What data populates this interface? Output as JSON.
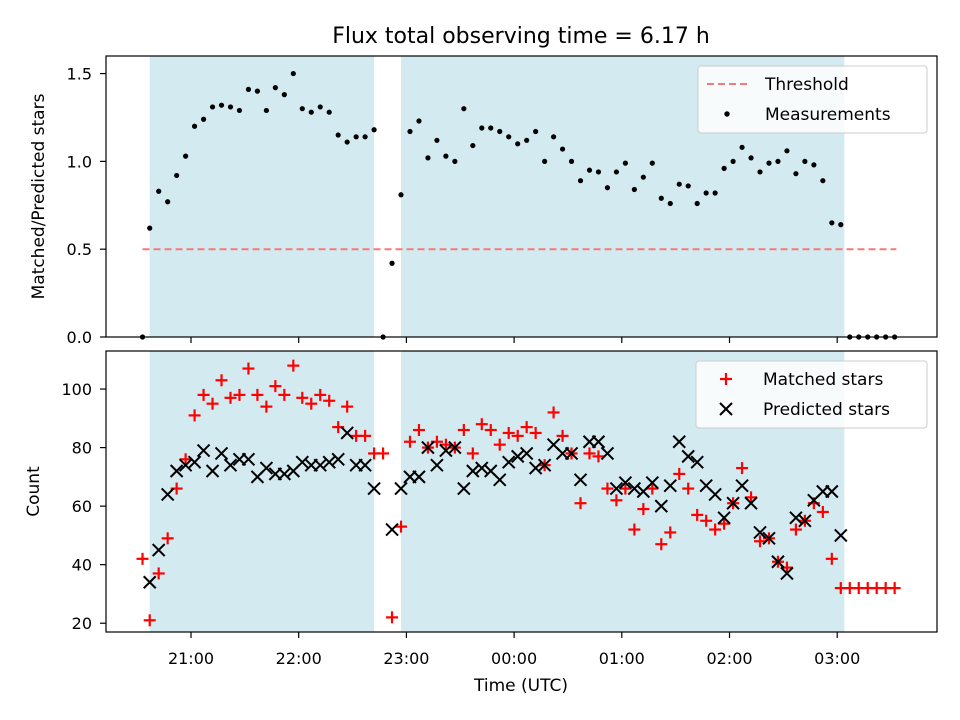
{
  "chart_data": [
    {
      "type": "scatter",
      "title": "Flux total observing time = 6.17 h",
      "xlabel": "",
      "ylabel": "Matched/Predicted stars",
      "ylim": [
        0,
        1.6
      ],
      "yticks": [
        "0.0",
        "0.5",
        "1.0",
        "1.5"
      ],
      "threshold": {
        "name": "Threshold",
        "value": 0.5,
        "x_range": [
          "20:33",
          "03:33"
        ],
        "color": "#f47a7a"
      },
      "shaded_intervals": [
        [
          "20:37",
          "22:42"
        ],
        [
          "22:57",
          "03:04"
        ]
      ],
      "shade_color": "#d4eaf1",
      "legend_position": "upper right",
      "series": [
        {
          "name": "Measurements",
          "color": "#000000",
          "marker": "dot",
          "points": [
            [
              "20:33",
              0.0
            ],
            [
              "20:37",
              0.62
            ],
            [
              "20:42",
              0.83
            ],
            [
              "20:47",
              0.77
            ],
            [
              "20:52",
              0.92
            ],
            [
              "20:57",
              1.03
            ],
            [
              "21:02",
              1.2
            ],
            [
              "21:07",
              1.24
            ],
            [
              "21:12",
              1.31
            ],
            [
              "21:17",
              1.32
            ],
            [
              "21:22",
              1.31
            ],
            [
              "21:27",
              1.29
            ],
            [
              "21:32",
              1.41
            ],
            [
              "21:37",
              1.4
            ],
            [
              "21:42",
              1.29
            ],
            [
              "21:47",
              1.42
            ],
            [
              "21:52",
              1.38
            ],
            [
              "21:57",
              1.5
            ],
            [
              "22:02",
              1.3
            ],
            [
              "22:07",
              1.28
            ],
            [
              "22:12",
              1.31
            ],
            [
              "22:17",
              1.28
            ],
            [
              "22:22",
              1.15
            ],
            [
              "22:27",
              1.11
            ],
            [
              "22:32",
              1.14
            ],
            [
              "22:37",
              1.14
            ],
            [
              "22:42",
              1.18
            ],
            [
              "22:47",
              0.0
            ],
            [
              "22:52",
              0.42
            ],
            [
              "22:57",
              0.81
            ],
            [
              "23:02",
              1.17
            ],
            [
              "23:07",
              1.23
            ],
            [
              "23:12",
              1.02
            ],
            [
              "23:17",
              1.12
            ],
            [
              "23:22",
              1.03
            ],
            [
              "23:27",
              1.0
            ],
            [
              "23:32",
              1.3
            ],
            [
              "23:37",
              1.09
            ],
            [
              "23:42",
              1.19
            ],
            [
              "23:47",
              1.19
            ],
            [
              "23:52",
              1.17
            ],
            [
              "23:57",
              1.14
            ],
            [
              "00:02",
              1.1
            ],
            [
              "00:07",
              1.12
            ],
            [
              "00:12",
              1.17
            ],
            [
              "00:17",
              1.0
            ],
            [
              "00:22",
              1.14
            ],
            [
              "00:27",
              1.07
            ],
            [
              "00:32",
              1.0
            ],
            [
              "00:37",
              0.89
            ],
            [
              "00:42",
              0.95
            ],
            [
              "00:47",
              0.94
            ],
            [
              "00:52",
              0.85
            ],
            [
              "00:57",
              0.94
            ],
            [
              "01:02",
              0.99
            ],
            [
              "01:07",
              0.84
            ],
            [
              "01:12",
              0.91
            ],
            [
              "01:17",
              0.99
            ],
            [
              "01:22",
              0.79
            ],
            [
              "01:27",
              0.76
            ],
            [
              "01:32",
              0.87
            ],
            [
              "01:37",
              0.86
            ],
            [
              "01:42",
              0.76
            ],
            [
              "01:47",
              0.82
            ],
            [
              "01:52",
              0.82
            ],
            [
              "01:57",
              0.96
            ],
            [
              "02:02",
              1.0
            ],
            [
              "02:07",
              1.08
            ],
            [
              "02:12",
              1.02
            ],
            [
              "02:17",
              0.94
            ],
            [
              "02:22",
              0.99
            ],
            [
              "02:27",
              1.0
            ],
            [
              "02:32",
              1.06
            ],
            [
              "02:37",
              0.93
            ],
            [
              "02:42",
              1.0
            ],
            [
              "02:47",
              0.98
            ],
            [
              "02:52",
              0.89
            ],
            [
              "02:57",
              0.65
            ],
            [
              "03:02",
              0.64
            ],
            [
              "03:07",
              0.0
            ],
            [
              "03:12",
              0.0
            ],
            [
              "03:17",
              0.0
            ],
            [
              "03:22",
              0.0
            ],
            [
              "03:27",
              0.0
            ],
            [
              "03:32",
              0.0
            ]
          ]
        }
      ]
    },
    {
      "type": "scatter",
      "title": "",
      "xlabel": "Time (UTC)",
      "ylabel": "Count",
      "ylim": [
        17,
        113
      ],
      "yticks": [
        "20",
        "40",
        "60",
        "80",
        "100"
      ],
      "xticks": [
        "21:00",
        "22:00",
        "23:00",
        "00:00",
        "01:00",
        "02:00",
        "03:00"
      ],
      "shaded_intervals": [
        [
          "20:37",
          "22:42"
        ],
        [
          "22:57",
          "03:04"
        ]
      ],
      "shade_color": "#d4eaf1",
      "legend_position": "upper right",
      "series": [
        {
          "name": "Matched stars",
          "color": "#ff0000",
          "marker": "plus",
          "points": [
            [
              "20:33",
              42
            ],
            [
              "20:37",
              21
            ],
            [
              "20:42",
              37
            ],
            [
              "20:47",
              49
            ],
            [
              "20:52",
              66
            ],
            [
              "20:57",
              76
            ],
            [
              "21:02",
              91
            ],
            [
              "21:07",
              98
            ],
            [
              "21:12",
              95
            ],
            [
              "21:17",
              103
            ],
            [
              "21:22",
              97
            ],
            [
              "21:27",
              98
            ],
            [
              "21:32",
              107
            ],
            [
              "21:37",
              98
            ],
            [
              "21:42",
              94
            ],
            [
              "21:47",
              101
            ],
            [
              "21:52",
              98
            ],
            [
              "21:57",
              108
            ],
            [
              "22:02",
              97
            ],
            [
              "22:07",
              95
            ],
            [
              "22:12",
              98
            ],
            [
              "22:17",
              96
            ],
            [
              "22:22",
              87
            ],
            [
              "22:27",
              94
            ],
            [
              "22:32",
              84
            ],
            [
              "22:37",
              84
            ],
            [
              "22:42",
              78
            ],
            [
              "22:47",
              78
            ],
            [
              "22:52",
              22
            ],
            [
              "22:57",
              53
            ],
            [
              "23:02",
              82
            ],
            [
              "23:07",
              86
            ],
            [
              "23:12",
              80
            ],
            [
              "23:17",
              82
            ],
            [
              "23:22",
              81
            ],
            [
              "23:27",
              80
            ],
            [
              "23:32",
              86
            ],
            [
              "23:37",
              78
            ],
            [
              "23:42",
              88
            ],
            [
              "23:47",
              86
            ],
            [
              "23:52",
              81
            ],
            [
              "23:57",
              85
            ],
            [
              "00:02",
              84
            ],
            [
              "00:07",
              87
            ],
            [
              "00:12",
              85
            ],
            [
              "00:17",
              74
            ],
            [
              "00:22",
              92
            ],
            [
              "00:27",
              84
            ],
            [
              "00:32",
              78
            ],
            [
              "00:37",
              61
            ],
            [
              "00:42",
              78
            ],
            [
              "00:47",
              77
            ],
            [
              "00:52",
              66
            ],
            [
              "00:57",
              62
            ],
            [
              "01:02",
              66
            ],
            [
              "01:07",
              52
            ],
            [
              "01:12",
              59
            ],
            [
              "01:17",
              66
            ],
            [
              "01:22",
              47
            ],
            [
              "01:27",
              51
            ],
            [
              "01:32",
              71
            ],
            [
              "01:37",
              66
            ],
            [
              "01:42",
              57
            ],
            [
              "01:47",
              55
            ],
            [
              "01:52",
              52
            ],
            [
              "01:57",
              54
            ],
            [
              "02:02",
              61
            ],
            [
              "02:07",
              73
            ],
            [
              "02:12",
              63
            ],
            [
              "02:17",
              48
            ],
            [
              "02:22",
              49
            ],
            [
              "02:27",
              41
            ],
            [
              "02:32",
              39
            ],
            [
              "02:37",
              52
            ],
            [
              "02:42",
              55
            ],
            [
              "02:47",
              61
            ],
            [
              "02:52",
              58
            ],
            [
              "02:57",
              42
            ],
            [
              "03:02",
              32
            ],
            [
              "03:07",
              32
            ],
            [
              "03:12",
              32
            ],
            [
              "03:17",
              32
            ],
            [
              "03:22",
              32
            ],
            [
              "03:27",
              32
            ],
            [
              "03:32",
              32
            ]
          ]
        },
        {
          "name": "Predicted stars",
          "color": "#000000",
          "marker": "x",
          "points": [
            [
              "20:37",
              34
            ],
            [
              "20:42",
              45
            ],
            [
              "20:47",
              64
            ],
            [
              "20:52",
              72
            ],
            [
              "20:57",
              74
            ],
            [
              "21:02",
              75
            ],
            [
              "21:07",
              79
            ],
            [
              "21:12",
              72
            ],
            [
              "21:17",
              78
            ],
            [
              "21:22",
              74
            ],
            [
              "21:27",
              76
            ],
            [
              "21:32",
              76
            ],
            [
              "21:37",
              70
            ],
            [
              "21:42",
              73
            ],
            [
              "21:47",
              71
            ],
            [
              "21:52",
              71
            ],
            [
              "21:57",
              72
            ],
            [
              "22:02",
              75
            ],
            [
              "22:07",
              74
            ],
            [
              "22:12",
              74
            ],
            [
              "22:17",
              75
            ],
            [
              "22:22",
              76
            ],
            [
              "22:27",
              85
            ],
            [
              "22:32",
              74
            ],
            [
              "22:37",
              74
            ],
            [
              "22:42",
              66
            ],
            [
              "22:52",
              52
            ],
            [
              "22:57",
              66
            ],
            [
              "23:02",
              70
            ],
            [
              "23:07",
              70
            ],
            [
              "23:12",
              80
            ],
            [
              "23:17",
              74
            ],
            [
              "23:22",
              79
            ],
            [
              "23:27",
              80
            ],
            [
              "23:32",
              66
            ],
            [
              "23:37",
              72
            ],
            [
              "23:42",
              73
            ],
            [
              "23:47",
              72
            ],
            [
              "23:52",
              69
            ],
            [
              "23:57",
              75
            ],
            [
              "00:02",
              77
            ],
            [
              "00:07",
              78
            ],
            [
              "00:12",
              73
            ],
            [
              "00:17",
              74
            ],
            [
              "00:22",
              81
            ],
            [
              "00:27",
              78
            ],
            [
              "00:32",
              78
            ],
            [
              "00:37",
              69
            ],
            [
              "00:42",
              82
            ],
            [
              "00:47",
              82
            ],
            [
              "00:52",
              78
            ],
            [
              "00:57",
              66
            ],
            [
              "01:02",
              68
            ],
            [
              "01:07",
              66
            ],
            [
              "01:12",
              65
            ],
            [
              "01:17",
              68
            ],
            [
              "01:22",
              60
            ],
            [
              "01:27",
              67
            ],
            [
              "01:32",
              82
            ],
            [
              "01:37",
              77
            ],
            [
              "01:42",
              75
            ],
            [
              "01:47",
              67
            ],
            [
              "01:52",
              64
            ],
            [
              "01:57",
              56
            ],
            [
              "02:02",
              61
            ],
            [
              "02:07",
              67
            ],
            [
              "02:12",
              61
            ],
            [
              "02:17",
              51
            ],
            [
              "02:22",
              49
            ],
            [
              "02:27",
              41
            ],
            [
              "02:32",
              37
            ],
            [
              "02:37",
              56
            ],
            [
              "02:42",
              55
            ],
            [
              "02:47",
              62
            ],
            [
              "02:52",
              65
            ],
            [
              "02:57",
              65
            ],
            [
              "03:02",
              50
            ]
          ]
        }
      ]
    }
  ]
}
